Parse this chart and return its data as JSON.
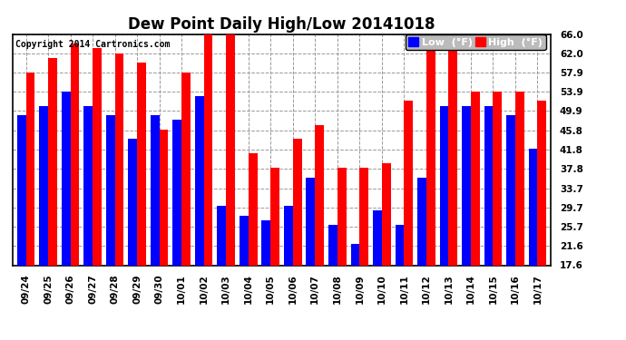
{
  "title": "Dew Point Daily High/Low 20141018",
  "copyright": "Copyright 2014 Cartronics.com",
  "dates": [
    "09/24",
    "09/25",
    "09/26",
    "09/27",
    "09/28",
    "09/29",
    "09/30",
    "10/01",
    "10/02",
    "10/03",
    "10/04",
    "10/05",
    "10/06",
    "10/07",
    "10/08",
    "10/09",
    "10/10",
    "10/11",
    "10/12",
    "10/13",
    "10/14",
    "10/15",
    "10/16",
    "10/17"
  ],
  "low": [
    49,
    51,
    54,
    51,
    49,
    44,
    49,
    48,
    53,
    30,
    28,
    27,
    30,
    36,
    26,
    22,
    29,
    26,
    36,
    51,
    51,
    51,
    49,
    42
  ],
  "high": [
    58,
    61,
    64,
    63,
    62,
    60,
    46,
    58,
    66,
    66,
    41,
    38,
    44,
    47,
    38,
    38,
    39,
    52,
    66,
    65,
    54,
    54,
    54,
    52
  ],
  "low_color": "#0000ff",
  "high_color": "#ff0000",
  "background_color": "#ffffff",
  "grid_color": "#999999",
  "ymin": 17.6,
  "ymax": 66.0,
  "yticks": [
    17.6,
    21.6,
    25.7,
    29.7,
    33.7,
    37.8,
    41.8,
    45.8,
    49.9,
    53.9,
    57.9,
    62.0,
    66.0
  ],
  "bar_width": 0.4,
  "title_fontsize": 12,
  "tick_fontsize": 7.5,
  "legend_fontsize": 8
}
